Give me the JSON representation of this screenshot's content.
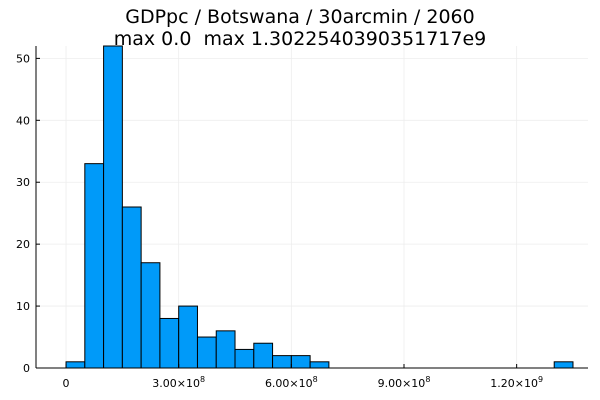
{
  "chart_data": {
    "type": "bar",
    "title_lines": [
      "GDPpc / Botswana / 30arcmin / 2060",
      "max 0.0  max 1.3022540390351717e9"
    ],
    "xlabel": "",
    "ylabel": "",
    "bin_width": 50000000,
    "bins": [
      {
        "x0": 0,
        "x1": 50000000,
        "count": 1
      },
      {
        "x0": 50000000,
        "x1": 100000000,
        "count": 33
      },
      {
        "x0": 100000000,
        "x1": 150000000,
        "count": 52
      },
      {
        "x0": 150000000,
        "x1": 200000000,
        "count": 26
      },
      {
        "x0": 200000000,
        "x1": 250000000,
        "count": 17
      },
      {
        "x0": 250000000,
        "x1": 300000000,
        "count": 8
      },
      {
        "x0": 300000000,
        "x1": 350000000,
        "count": 10
      },
      {
        "x0": 350000000,
        "x1": 400000000,
        "count": 5
      },
      {
        "x0": 400000000,
        "x1": 450000000,
        "count": 6
      },
      {
        "x0": 450000000,
        "x1": 500000000,
        "count": 3
      },
      {
        "x0": 500000000,
        "x1": 550000000,
        "count": 4
      },
      {
        "x0": 550000000,
        "x1": 600000000,
        "count": 2
      },
      {
        "x0": 600000000,
        "x1": 650000000,
        "count": 2
      },
      {
        "x0": 650000000,
        "x1": 700000000,
        "count": 1
      },
      {
        "x0": 1300000000,
        "x1": 1350000000,
        "count": 1
      }
    ],
    "xlim": [
      -80000000,
      1390000000
    ],
    "ylim": [
      0,
      52
    ],
    "x_ticks": [
      {
        "value": 0,
        "mantissa": "0",
        "exponent": ""
      },
      {
        "value": 300000000,
        "mantissa": "3.00×10",
        "exponent": "8"
      },
      {
        "value": 600000000,
        "mantissa": "6.00×10",
        "exponent": "8"
      },
      {
        "value": 900000000,
        "mantissa": "9.00×10",
        "exponent": "8"
      },
      {
        "value": 1200000000,
        "mantissa": "1.20×10",
        "exponent": "9"
      }
    ],
    "y_ticks": [
      0,
      10,
      20,
      30,
      40,
      50
    ],
    "grid": true,
    "legend": "none",
    "colors": {
      "bar_fill": "#009af9",
      "bar_stroke": "#000000",
      "grid": "#ededed",
      "axis": "#000000"
    }
  }
}
